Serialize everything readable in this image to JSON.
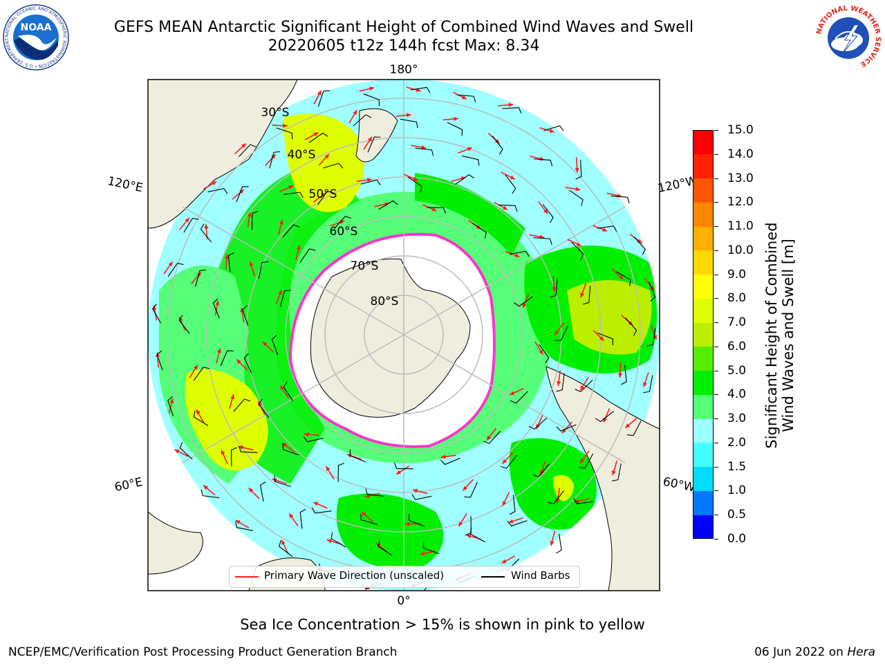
{
  "header": {
    "title_line1": "GEFS MEAN Antarctic Significant Height of Combined Wind Waves and Swell",
    "title_line2": "20220605 t12z 144h fcst   Max: 8.34"
  },
  "logos": {
    "noaa": "NOAA",
    "noaa_ring": "NATIONAL OCEANIC AND ATMOSPHERIC ADMINISTRATION • U.S. DEPARTMENT OF COMMERCE",
    "nws_ring": "NATIONAL WEATHER SERVICE"
  },
  "map": {
    "longitude_labels": {
      "top": "180°",
      "bottom": "0°",
      "left_upper": "120°E",
      "left_lower": "60°E",
      "right_upper": "120°W",
      "right_lower": "60°W"
    },
    "latitude_labels": [
      "30°S",
      "40°S",
      "50°S",
      "60°S",
      "70°S",
      "80°S"
    ],
    "colors": {
      "ocean_background": "#a0ffff",
      "land": "#efedde",
      "ice": "#ffffff",
      "ice_edge": "#ff33cc",
      "arrow": "#ff1a1a",
      "barb": "#000000",
      "graticule": "#bbbbbb"
    }
  },
  "legend": {
    "arrow_label": "Primary Wave Direction (unscaled)",
    "barb_label": "Wind Barbs"
  },
  "colorbar": {
    "label_line1": "Significant Height of Combined",
    "label_line2": "Wind Waves and Swell [m]",
    "ticks": [
      "0.0",
      "0.5",
      "1.0",
      "1.5",
      "2.0",
      "3.0",
      "4.0",
      "5.0",
      "6.0",
      "7.0",
      "8.0",
      "9.0",
      "10.0",
      "11.0",
      "12.0",
      "13.0",
      "14.0",
      "15.0"
    ],
    "colors": [
      "#0000ff",
      "#0077ff",
      "#00ddff",
      "#44ffff",
      "#a0ffff",
      "#55ff77",
      "#00ee00",
      "#55ee00",
      "#bbee00",
      "#ddff00",
      "#ffff00",
      "#ffd800",
      "#ffb000",
      "#ff8800",
      "#ff5500",
      "#ff2200",
      "#ff0000"
    ]
  },
  "footer": {
    "sea_ice_note": "Sea Ice Concentration > 15% is shown in pink to yellow",
    "credit_left": "NCEP/EMC/Verification Post Processing Product Generation Branch",
    "credit_date": "06 Jun 2022 on ",
    "credit_machine": "Hera"
  }
}
